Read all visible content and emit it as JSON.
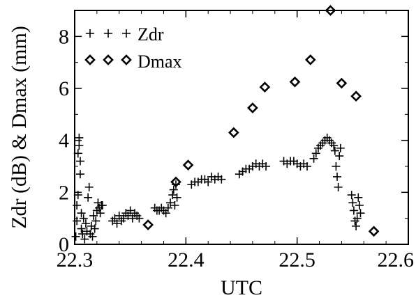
{
  "chart_data": {
    "type": "scatter",
    "xlabel": "UTC",
    "ylabel": "Zdr (dB) & Dmax (mm)",
    "xlim": [
      22.3,
      22.6
    ],
    "ylim": [
      0,
      9
    ],
    "x_ticks": [
      "22.3",
      "22.4",
      "22.5",
      "22.6"
    ],
    "y_ticks": [
      "0",
      "2",
      "4",
      "6",
      "8"
    ],
    "grid": false,
    "legend_position": "top-left",
    "series": [
      {
        "name": "Zdr",
        "marker": "plus",
        "color": "#000000",
        "points": [
          [
            22.301,
            0.3
          ],
          [
            22.302,
            0.9
          ],
          [
            22.302,
            1.5
          ],
          [
            22.303,
            1.9
          ],
          [
            22.303,
            3.5
          ],
          [
            22.304,
            4.1
          ],
          [
            22.304,
            3.8
          ],
          [
            22.305,
            3.2
          ],
          [
            22.305,
            2.7
          ],
          [
            22.306,
            0.6
          ],
          [
            22.306,
            1.2
          ],
          [
            22.307,
            0.4
          ],
          [
            22.308,
            1.0
          ],
          [
            22.309,
            0.2
          ],
          [
            22.31,
            0.8
          ],
          [
            22.311,
            0.5
          ],
          [
            22.312,
            1.8
          ],
          [
            22.313,
            2.2
          ],
          [
            22.314,
            0.4
          ],
          [
            22.315,
            0.7
          ],
          [
            22.316,
            0.3
          ],
          [
            22.317,
            1.1
          ],
          [
            22.318,
            0.6
          ],
          [
            22.319,
            0.9
          ],
          [
            22.32,
            1.3
          ],
          [
            22.321,
            1.6
          ],
          [
            22.322,
            1.4
          ],
          [
            22.323,
            1.2
          ],
          [
            22.324,
            1.5
          ],
          [
            22.325,
            1.5
          ],
          [
            22.334,
            0.9
          ],
          [
            22.336,
            1.0
          ],
          [
            22.338,
            0.8
          ],
          [
            22.34,
            1.1
          ],
          [
            22.342,
            0.9
          ],
          [
            22.344,
            1.0
          ],
          [
            22.346,
            1.2
          ],
          [
            22.348,
            1.1
          ],
          [
            22.35,
            1.3
          ],
          [
            22.352,
            1.0
          ],
          [
            22.354,
            1.2
          ],
          [
            22.356,
            1.1
          ],
          [
            22.358,
            1.0
          ],
          [
            22.372,
            1.4
          ],
          [
            22.374,
            1.3
          ],
          [
            22.376,
            1.3
          ],
          [
            22.378,
            1.4
          ],
          [
            22.38,
            1.3
          ],
          [
            22.382,
            1.2
          ],
          [
            22.384,
            1.4
          ],
          [
            22.386,
            1.6
          ],
          [
            22.388,
            1.9
          ],
          [
            22.389,
            2.1
          ],
          [
            22.39,
            1.5
          ],
          [
            22.391,
            2.3
          ],
          [
            22.392,
            1.8
          ],
          [
            22.405,
            2.3
          ],
          [
            22.408,
            2.4
          ],
          [
            22.411,
            2.4
          ],
          [
            22.414,
            2.5
          ],
          [
            22.417,
            2.5
          ],
          [
            22.42,
            2.4
          ],
          [
            22.423,
            2.6
          ],
          [
            22.426,
            2.5
          ],
          [
            22.429,
            2.6
          ],
          [
            22.432,
            2.5
          ],
          [
            22.448,
            2.7
          ],
          [
            22.451,
            2.8
          ],
          [
            22.454,
            2.9
          ],
          [
            22.457,
            2.9
          ],
          [
            22.46,
            3.0
          ],
          [
            22.463,
            3.1
          ],
          [
            22.466,
            3.0
          ],
          [
            22.469,
            3.1
          ],
          [
            22.472,
            3.0
          ],
          [
            22.488,
            3.2
          ],
          [
            22.491,
            3.1
          ],
          [
            22.494,
            3.2
          ],
          [
            22.497,
            3.2
          ],
          [
            22.5,
            3.1
          ],
          [
            22.503,
            3.0
          ],
          [
            22.506,
            3.1
          ],
          [
            22.509,
            3.0
          ],
          [
            22.515,
            3.3
          ],
          [
            22.517,
            3.5
          ],
          [
            22.519,
            3.7
          ],
          [
            22.521,
            3.8
          ],
          [
            22.523,
            3.9
          ],
          [
            22.525,
            4.0
          ],
          [
            22.527,
            4.1
          ],
          [
            22.529,
            4.0
          ],
          [
            22.531,
            3.9
          ],
          [
            22.533,
            3.8
          ],
          [
            22.534,
            3.6
          ],
          [
            22.535,
            3.0
          ],
          [
            22.536,
            2.6
          ],
          [
            22.537,
            2.2
          ],
          [
            22.538,
            3.4
          ],
          [
            22.539,
            3.7
          ],
          [
            22.549,
            1.9
          ],
          [
            22.55,
            1.6
          ],
          [
            22.551,
            1.3
          ],
          [
            22.552,
            0.9
          ],
          [
            22.553,
            0.7
          ],
          [
            22.554,
            1.0
          ],
          [
            22.555,
            1.8
          ],
          [
            22.556,
            1.5
          ],
          [
            22.557,
            1.2
          ]
        ]
      },
      {
        "name": "Dmax",
        "marker": "diamond",
        "color": "#000000",
        "points": [
          [
            22.366,
            0.75
          ],
          [
            22.391,
            2.4
          ],
          [
            22.402,
            3.05
          ],
          [
            22.443,
            4.3
          ],
          [
            22.46,
            5.25
          ],
          [
            22.471,
            6.05
          ],
          [
            22.498,
            6.25
          ],
          [
            22.512,
            7.1
          ],
          [
            22.53,
            9.0
          ],
          [
            22.54,
            6.2
          ],
          [
            22.553,
            5.7
          ],
          [
            22.569,
            0.5
          ]
        ]
      }
    ]
  }
}
